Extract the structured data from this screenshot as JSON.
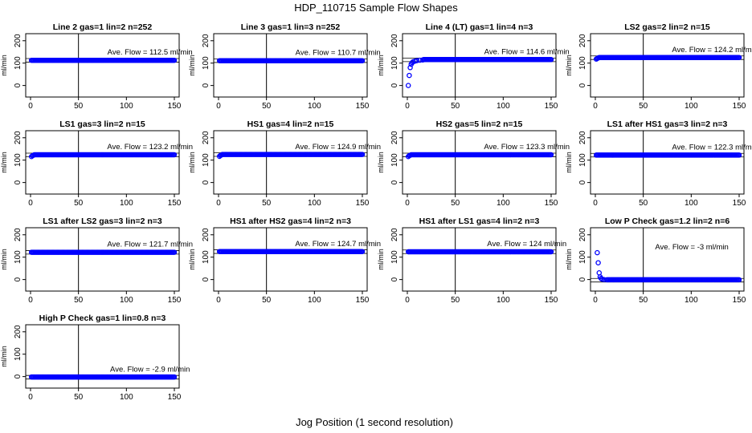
{
  "title": "HDP_110715  Sample Flow Shapes",
  "xlabel": "Jog Position (1 second resolution)",
  "chart_data": {
    "type": "scatter",
    "title": "HDP_110715  Sample Flow Shapes",
    "xlabel": "Jog Position (1 second resolution)",
    "ylabel": "ml/min",
    "xlim": [
      0,
      150
    ],
    "ylim": [
      -30,
      210
    ],
    "xticks": [
      0,
      50,
      100,
      150
    ],
    "yticks": [
      0,
      100,
      200
    ],
    "vline_x": 50,
    "point_color": "#0000ff",
    "annotation_unit": "ml/min",
    "annotation_prefix": "Ave. Flow =",
    "panels": [
      {
        "title": "Line 2 gas=1 lin=2 n=252",
        "ave_flow": "112.5",
        "plateau": 112.5,
        "shape": "flat"
      },
      {
        "title": "Line 3 gas=1 lin=3 n=252",
        "ave_flow": "110.7",
        "plateau": 110.7,
        "shape": "flat"
      },
      {
        "title": "Line 4 (LT) gas=1 lin=4 n=3",
        "ave_flow": "114.6",
        "plateau": 116,
        "shape": "rise",
        "start_points": [
          [
            1,
            0
          ],
          [
            2,
            45
          ],
          [
            3,
            80
          ],
          [
            4,
            95
          ],
          [
            5,
            102
          ],
          [
            6,
            106
          ],
          [
            8,
            109
          ],
          [
            10,
            111
          ],
          [
            13,
            113
          ],
          [
            16,
            114
          ]
        ]
      },
      {
        "title": "LS2 gas=2 lin=2 n=15",
        "ave_flow": "124.2",
        "plateau": 125,
        "shape": "flat",
        "start_points": [
          [
            1,
            118
          ],
          [
            2,
            121
          ],
          [
            3,
            123
          ]
        ]
      },
      {
        "title": "LS1 gas=3 lin=2 n=15",
        "ave_flow": "123.2",
        "plateau": 124,
        "shape": "flat",
        "start_points": [
          [
            1,
            116
          ],
          [
            2,
            120
          ],
          [
            3,
            122
          ]
        ]
      },
      {
        "title": "HS1 gas=4 lin=2 n=15",
        "ave_flow": "124.9",
        "plateau": 125.5,
        "shape": "flat",
        "start_points": [
          [
            1,
            117
          ],
          [
            2,
            121
          ],
          [
            3,
            123
          ]
        ]
      },
      {
        "title": "HS2 gas=5 lin=2 n=15",
        "ave_flow": "123.3",
        "plateau": 124,
        "shape": "flat",
        "start_points": [
          [
            1,
            116
          ],
          [
            2,
            120
          ],
          [
            3,
            122
          ]
        ]
      },
      {
        "title": "LS1 after HS1 gas=3 lin=2 n=3",
        "ave_flow": "122.3",
        "plateau": 122.5,
        "shape": "flat"
      },
      {
        "title": "LS1 after LS2 gas=3 lin=2 n=3",
        "ave_flow": "121.7",
        "plateau": 122,
        "shape": "flat"
      },
      {
        "title": "HS1 after HS2 gas=4 lin=2 n=3",
        "ave_flow": "124.7",
        "plateau": 125,
        "shape": "flat"
      },
      {
        "title": "HS1 after LS1 gas=4 lin=2 n=3",
        "ave_flow": "124",
        "plateau": 124,
        "shape": "flat"
      },
      {
        "title": "Low P Check gas=1.2 lin=2 n=6",
        "ave_flow": "-3",
        "plateau": -1,
        "shape": "decay",
        "start_points": [
          [
            2,
            120
          ],
          [
            3,
            75
          ],
          [
            4,
            30
          ],
          [
            5,
            12
          ],
          [
            6,
            5
          ],
          [
            7,
            2
          ],
          [
            9,
            0
          ],
          [
            12,
            -1
          ]
        ]
      },
      {
        "title": "High P Check gas=1 lin=0.8 n=3",
        "ave_flow": "-2.9",
        "plateau": -2,
        "shape": "flat"
      }
    ]
  }
}
